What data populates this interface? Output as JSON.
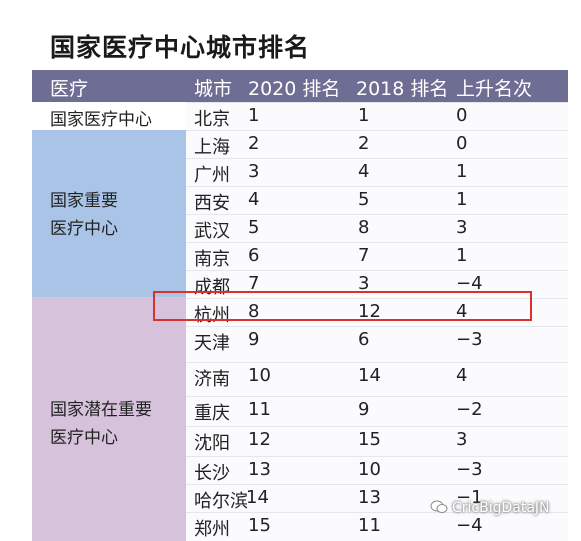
{
  "title": "国家医疗中心城市排名",
  "header": {
    "category": "医疗",
    "city": "城市",
    "rank2020": "2020 排名",
    "rank2018": "2018 排名",
    "rise": "上升名次"
  },
  "categories": [
    {
      "lines": [
        "国家医疗中心"
      ]
    },
    {
      "lines": [
        "国家重要",
        "医疗中心"
      ]
    },
    {
      "lines": [
        "国家潜在重要",
        "医疗中心"
      ]
    }
  ],
  "rows": [
    {
      "city": "北京",
      "rank2020": "1",
      "rank2018": "1",
      "rise": "0"
    },
    {
      "city": "上海",
      "rank2020": "2",
      "rank2018": "2",
      "rise": "0"
    },
    {
      "city": "广州",
      "rank2020": "3",
      "rank2018": "4",
      "rise": "1"
    },
    {
      "city": "西安",
      "rank2020": "4",
      "rank2018": "5",
      "rise": "1"
    },
    {
      "city": "武汉",
      "rank2020": "5",
      "rank2018": "8",
      "rise": "3"
    },
    {
      "city": "南京",
      "rank2020": "6",
      "rank2018": "7",
      "rise": "1"
    },
    {
      "city": "成都",
      "rank2020": "7",
      "rank2018": "3",
      "rise": "−4"
    },
    {
      "city": "杭州",
      "rank2020": "8",
      "rank2018": "12",
      "rise": "4"
    },
    {
      "city": "天津",
      "rank2020": "9",
      "rank2018": "6",
      "rise": "−3"
    },
    {
      "city": "济南",
      "rank2020": "10",
      "rank2018": "14",
      "rise": "4"
    },
    {
      "city": "重庆",
      "rank2020": "11",
      "rank2018": "9",
      "rise": "−2"
    },
    {
      "city": "沈阳",
      "rank2020": "12",
      "rank2018": "15",
      "rise": "3"
    },
    {
      "city": "长沙",
      "rank2020": "13",
      "rank2018": "10",
      "rise": "−3"
    },
    {
      "city": "哈尔滨",
      "rank2020": "14",
      "rank2018": "13",
      "rise": "−1"
    },
    {
      "city": "郑州",
      "rank2020": "15",
      "rank2018": "11",
      "rise": "−4"
    }
  ],
  "watermark": "CricBigDataJN",
  "colors": {
    "header_bg": "#6e6d93",
    "category_blue": "#a9c4e6",
    "category_purple": "#d6c3db",
    "highlight": "#d9322c"
  }
}
